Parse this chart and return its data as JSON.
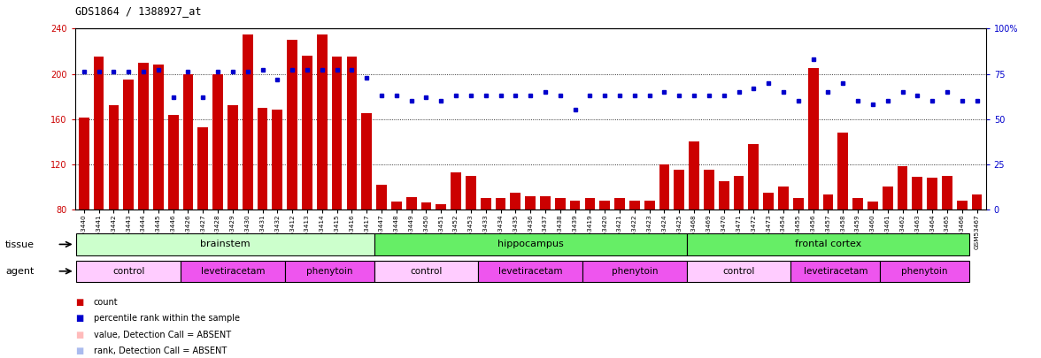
{
  "title": "GDS1864 / 1388927_at",
  "bar_color": "#cc0000",
  "dot_color": "#0000cc",
  "ylim_left": [
    80,
    240
  ],
  "ylim_right": [
    0,
    100
  ],
  "yticks_left": [
    80,
    120,
    160,
    200,
    240
  ],
  "yticks_right": [
    0,
    25,
    50,
    75,
    100
  ],
  "samples": [
    "GSM53440",
    "GSM53441",
    "GSM53442",
    "GSM53443",
    "GSM53444",
    "GSM53445",
    "GSM53446",
    "GSM53426",
    "GSM53427",
    "GSM53428",
    "GSM53429",
    "GSM53430",
    "GSM53431",
    "GSM53432",
    "GSM53412",
    "GSM53413",
    "GSM53414",
    "GSM53415",
    "GSM53416",
    "GSM53417",
    "GSM53447",
    "GSM53448",
    "GSM53449",
    "GSM53450",
    "GSM53451",
    "GSM53452",
    "GSM53453",
    "GSM53433",
    "GSM53434",
    "GSM53435",
    "GSM53436",
    "GSM53437",
    "GSM53438",
    "GSM53439",
    "GSM53419",
    "GSM53420",
    "GSM53421",
    "GSM53422",
    "GSM53423",
    "GSM53424",
    "GSM53425",
    "GSM53468",
    "GSM53469",
    "GSM53470",
    "GSM53471",
    "GSM53472",
    "GSM53473",
    "GSM53454",
    "GSM53455",
    "GSM53456",
    "GSM53457",
    "GSM53458",
    "GSM53459",
    "GSM53460",
    "GSM53461",
    "GSM53462",
    "GSM53463",
    "GSM53464",
    "GSM53465",
    "GSM53466",
    "GSM53467"
  ],
  "bar_values": [
    161,
    215,
    172,
    195,
    210,
    208,
    164,
    200,
    153,
    200,
    172,
    235,
    170,
    168,
    230,
    216,
    235,
    215,
    215,
    165,
    102,
    87,
    91,
    86,
    85,
    113,
    110,
    90,
    90,
    95,
    92,
    92,
    90,
    88,
    90,
    88,
    90,
    88,
    88,
    120,
    115,
    140,
    115,
    105,
    110,
    138,
    95,
    100,
    90,
    205,
    93,
    148,
    90,
    87,
    100,
    118,
    109,
    108,
    110,
    88,
    93
  ],
  "dot_values": [
    76,
    76,
    76,
    76,
    76,
    77,
    62,
    76,
    62,
    76,
    76,
    76,
    77,
    72,
    77,
    77,
    77,
    77,
    77,
    73,
    63,
    63,
    60,
    62,
    60,
    63,
    63,
    63,
    63,
    63,
    63,
    65,
    63,
    55,
    63,
    63,
    63,
    63,
    63,
    65,
    63,
    63,
    63,
    63,
    65,
    67,
    70,
    65,
    60,
    83,
    65,
    70,
    60,
    58,
    60,
    65,
    63,
    60,
    65,
    60,
    60
  ],
  "tissue_regions": [
    {
      "label": "brainstem",
      "start": 0,
      "end": 20,
      "color": "#ccffcc"
    },
    {
      "label": "hippocampus",
      "start": 20,
      "end": 41,
      "color": "#66ee66"
    },
    {
      "label": "frontal cortex",
      "start": 41,
      "end": 60,
      "color": "#66ee66"
    }
  ],
  "agent_regions": [
    {
      "label": "control",
      "start": 0,
      "end": 7,
      "color": "#ffccff"
    },
    {
      "label": "levetiracetam",
      "start": 7,
      "end": 14,
      "color": "#ee55ee"
    },
    {
      "label": "phenytoin",
      "start": 14,
      "end": 20,
      "color": "#ee55ee"
    },
    {
      "label": "control",
      "start": 20,
      "end": 27,
      "color": "#ffccff"
    },
    {
      "label": "levetiracetam",
      "start": 27,
      "end": 34,
      "color": "#ee55ee"
    },
    {
      "label": "phenytoin",
      "start": 34,
      "end": 41,
      "color": "#ee55ee"
    },
    {
      "label": "control",
      "start": 41,
      "end": 48,
      "color": "#ffccff"
    },
    {
      "label": "levetiracetam",
      "start": 48,
      "end": 54,
      "color": "#ee55ee"
    },
    {
      "label": "phenytoin",
      "start": 54,
      "end": 60,
      "color": "#ee55ee"
    }
  ],
  "legend_items": [
    {
      "color": "#cc0000",
      "marker": "s",
      "label": "count"
    },
    {
      "color": "#0000cc",
      "marker": "s",
      "label": "percentile rank within the sample"
    },
    {
      "color": "#ffbbbb",
      "marker": "s",
      "label": "value, Detection Call = ABSENT"
    },
    {
      "color": "#aabbee",
      "marker": "s",
      "label": "rank, Detection Call = ABSENT"
    }
  ]
}
